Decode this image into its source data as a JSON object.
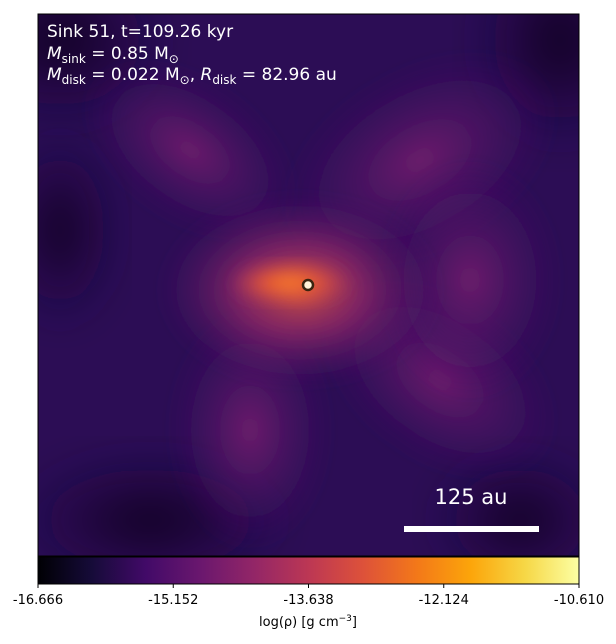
{
  "annotation": {
    "line1": "Sink 51, t=109.26 kyr",
    "msink_symbol": "M",
    "msink_sub": "sink",
    "msink_value": " = 0.85 M",
    "msink_unit_sub": "⊙",
    "mdisk_symbol": "M",
    "mdisk_sub": "disk",
    "mdisk_value": " = 0.022 M",
    "mdisk_unit_sub": "⊙",
    "mdisk_sep": ", ",
    "rdisk_symbol": "R",
    "rdisk_sub": "disk",
    "rdisk_value": " = 82.96 au"
  },
  "scalebar": {
    "label": "125 au"
  },
  "colorbar": {
    "colormap": "inferno",
    "ticks": [
      "-16.666",
      "-15.152",
      "-13.638",
      "-12.124",
      "-10.610"
    ],
    "label_prefix": "log(ρ) [g cm",
    "label_exp": "−3",
    "label_suffix": "]"
  },
  "colors": {
    "sink_marker_edge": "#3a2410",
    "sink_marker_fill": "#fff2d8",
    "scalebar": "#ffffff"
  }
}
